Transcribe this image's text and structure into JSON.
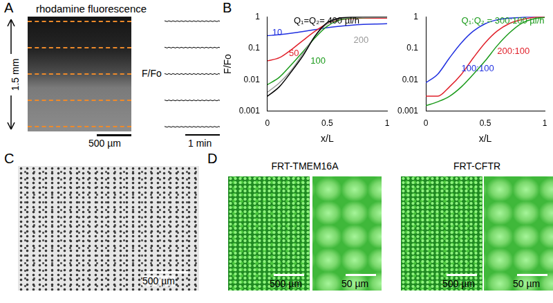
{
  "figure": {
    "panel_labels": [
      "A",
      "B",
      "C",
      "D"
    ],
    "panel_a": {
      "title": "rhodamine fluorescence",
      "height_label": "1.5 mm",
      "scale_bar": "500 µm",
      "trace_axis_label": "F/Fo",
      "time_bar": "1 min"
    },
    "panel_c": {
      "scale_bar": "500 µm"
    },
    "panel_d": {
      "groups": [
        {
          "title": "FRT-TMEM16A",
          "scale_bars": [
            "500 µm",
            "50 µm"
          ]
        },
        {
          "title": "FRT-CFTR",
          "scale_bars": [
            "500 µm",
            "50 µm"
          ]
        }
      ]
    }
  },
  "chart_data": [
    {
      "type": "line",
      "x_label": "x/L",
      "y_label": "F/Fo",
      "log": "y",
      "grid": false,
      "xlim": [
        0,
        1
      ],
      "xticks": [
        0,
        0.5,
        1
      ],
      "ylim": [
        0.001,
        1
      ],
      "yticks": [
        0.001,
        0.01,
        0.1,
        1
      ],
      "x": [
        0,
        0.1,
        0.2,
        0.3,
        0.4,
        0.5,
        0.6,
        0.7,
        0.8,
        0.9,
        1
      ],
      "series": [
        {
          "name": "Q₁=Q₂= 400 µl/h",
          "color": "#000000",
          "values": [
            0.003,
            0.006,
            0.018,
            0.06,
            0.25,
            0.65,
            0.9,
            0.97,
            1,
            1,
            1
          ]
        },
        {
          "name": "200",
          "color": "#999999",
          "values": [
            0.004,
            0.008,
            0.02,
            0.07,
            0.25,
            0.6,
            0.85,
            0.93,
            0.95,
            0.95,
            0.95
          ]
        },
        {
          "name": "100",
          "color": "#1a9a1a",
          "values": [
            0.007,
            0.012,
            0.03,
            0.08,
            0.22,
            0.5,
            0.78,
            0.9,
            0.93,
            0.95,
            0.95
          ]
        },
        {
          "name": "50",
          "color": "#e0202a",
          "values": [
            0.04,
            0.05,
            0.09,
            0.18,
            0.35,
            0.6,
            0.8,
            0.87,
            0.9,
            0.9,
            0.9
          ]
        },
        {
          "name": "10",
          "color": "#2030e0",
          "values": [
            0.25,
            0.27,
            0.3,
            0.34,
            0.39,
            0.45,
            0.5,
            0.54,
            0.57,
            0.59,
            0.6
          ]
        }
      ]
    },
    {
      "type": "line",
      "x_label": "x/L",
      "log": "y",
      "grid": false,
      "xlim": [
        0,
        1
      ],
      "xticks": [
        0,
        0.5,
        1
      ],
      "ylim": [
        0.001,
        1
      ],
      "yticks": [
        0.001,
        0.01,
        0.1,
        1
      ],
      "x": [
        0,
        0.1,
        0.2,
        0.3,
        0.4,
        0.5,
        0.6,
        0.7,
        0.8,
        0.9,
        1
      ],
      "series": [
        {
          "name": "Q₁:Q₂ = 300:100 µl/h",
          "color": "#1a9a1a",
          "values": [
            0.0015,
            0.002,
            0.003,
            0.006,
            0.015,
            0.04,
            0.12,
            0.3,
            0.6,
            0.85,
            0.95
          ]
        },
        {
          "name": "200:100",
          "color": "#e0202a",
          "values": [
            0.003,
            0.003,
            0.006,
            0.015,
            0.05,
            0.15,
            0.35,
            0.6,
            0.8,
            0.95,
            1
          ]
        },
        {
          "name": "100:100",
          "color": "#2030e0",
          "values": [
            0.008,
            0.015,
            0.05,
            0.15,
            0.35,
            0.6,
            0.8,
            0.9,
            0.95,
            1,
            1
          ]
        }
      ]
    }
  ]
}
